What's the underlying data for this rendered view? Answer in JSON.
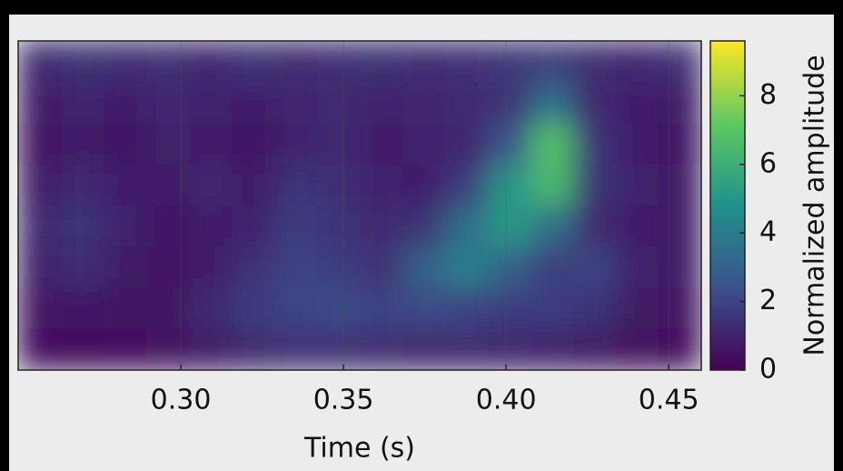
{
  "chart_data": {
    "type": "heatmap",
    "xlabel": "Time (s)",
    "colorbar_label": "Normalized amplitude",
    "xlim": [
      0.25,
      0.46
    ],
    "xticks": [
      {
        "value": 0.3,
        "label": "0.30"
      },
      {
        "value": 0.35,
        "label": "0.35"
      },
      {
        "value": 0.4,
        "label": "0.40"
      },
      {
        "value": 0.45,
        "label": "0.45"
      }
    ],
    "clim": [
      0,
      9.6
    ],
    "cticks": [
      0,
      2,
      4,
      6,
      8
    ],
    "colormap": [
      "#440154",
      "#3b528b",
      "#21918c",
      "#5ec962",
      "#fde725"
    ],
    "grid": true,
    "z": [
      [
        1.2,
        1.5,
        1.3,
        1.4,
        1.2,
        1.5,
        1.3,
        1.4,
        1.5,
        1.3,
        1.4,
        1.6,
        1.8,
        1.3,
        1.2,
        1.4
      ],
      [
        0.8,
        1.0,
        0.9,
        1.1,
        1.0,
        0.9,
        1.1,
        1.2,
        1.0,
        1.1,
        1.2,
        1.5,
        3.5,
        1.2,
        0.9,
        0.8
      ],
      [
        0.6,
        0.8,
        0.7,
        1.0,
        0.9,
        0.7,
        1.0,
        1.2,
        0.9,
        1.0,
        1.1,
        2.5,
        6.8,
        1.5,
        0.9,
        0.7
      ],
      [
        0.8,
        1.2,
        0.9,
        0.8,
        1.1,
        0.8,
        1.5,
        1.3,
        1.0,
        0.9,
        1.8,
        5.0,
        6.5,
        1.5,
        1.0,
        0.8
      ],
      [
        1.2,
        1.5,
        1.0,
        0.7,
        0.9,
        1.0,
        1.8,
        1.5,
        1.2,
        1.5,
        3.5,
        5.2,
        3.5,
        1.2,
        0.9,
        0.8
      ],
      [
        1.0,
        1.3,
        0.8,
        0.6,
        0.8,
        1.4,
        2.0,
        1.8,
        1.4,
        3.0,
        4.2,
        3.0,
        1.8,
        2.0,
        1.0,
        0.8
      ],
      [
        0.6,
        0.7,
        0.6,
        0.7,
        1.2,
        1.8,
        2.0,
        2.2,
        2.0,
        2.2,
        2.0,
        1.8,
        1.8,
        1.5,
        0.8,
        0.6
      ],
      [
        0.4,
        0.4,
        0.4,
        0.5,
        0.8,
        1.2,
        1.4,
        1.4,
        1.3,
        1.2,
        1.2,
        1.1,
        1.0,
        0.8,
        0.5,
        0.4
      ]
    ]
  }
}
